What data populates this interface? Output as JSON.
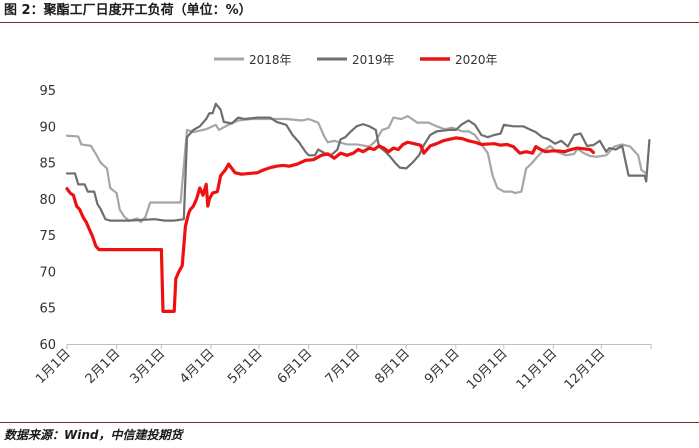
{
  "figure": {
    "title": "图 2：聚酯工厂日度开工负荷（单位：%）",
    "source": "数据来源：Wind，中信建投期货"
  },
  "chart_data": {
    "type": "line",
    "title": "",
    "xlabel": "",
    "ylabel": "",
    "ylim": [
      60,
      95
    ],
    "yticks": [
      60,
      65,
      70,
      75,
      80,
      85,
      90,
      95
    ],
    "x_domain": [
      1,
      366
    ],
    "x_unit": "day of year",
    "x_ticks": [
      {
        "label": "1月1日",
        "day": 1
      },
      {
        "label": "2月1日",
        "day": 32
      },
      {
        "label": "3月1日",
        "day": 60
      },
      {
        "label": "4月1日",
        "day": 91
      },
      {
        "label": "5月1日",
        "day": 121
      },
      {
        "label": "6月1日",
        "day": 152
      },
      {
        "label": "7月1日",
        "day": 182
      },
      {
        "label": "8月1日",
        "day": 213
      },
      {
        "label": "9月1日",
        "day": 244
      },
      {
        "label": "10月1日",
        "day": 274
      },
      {
        "label": "11月1日",
        "day": 305
      },
      {
        "label": "12月1日",
        "day": 335
      }
    ],
    "grid": false,
    "legend": "top-center",
    "series": [
      {
        "name": "2018年",
        "color": "#a6a6a6",
        "points": [
          [
            1,
            88.7
          ],
          [
            8,
            88.6
          ],
          [
            10,
            87.5
          ],
          [
            16,
            87.3
          ],
          [
            19,
            86.2
          ],
          [
            22,
            85.0
          ],
          [
            26,
            84.2
          ],
          [
            28,
            81.5
          ],
          [
            32,
            80.8
          ],
          [
            34,
            78.5
          ],
          [
            37,
            77.5
          ],
          [
            40,
            77.0
          ],
          [
            45,
            77.3
          ],
          [
            47,
            76.8
          ],
          [
            50,
            77.5
          ],
          [
            53,
            79.5
          ],
          [
            58,
            79.5
          ],
          [
            62,
            79.5
          ],
          [
            72,
            79.5
          ],
          [
            76,
            89.5
          ],
          [
            80,
            89.2
          ],
          [
            88,
            89.6
          ],
          [
            94,
            90.2
          ],
          [
            96,
            89.5
          ],
          [
            101,
            90.1
          ],
          [
            108,
            90.8
          ],
          [
            116,
            91.0
          ],
          [
            128,
            91.0
          ],
          [
            138,
            91.0
          ],
          [
            148,
            90.8
          ],
          [
            152,
            91.0
          ],
          [
            158,
            90.5
          ],
          [
            162,
            88.5
          ],
          [
            164,
            87.8
          ],
          [
            168,
            88.0
          ],
          [
            176,
            87.5
          ],
          [
            182,
            87.5
          ],
          [
            190,
            87.2
          ],
          [
            194,
            88.0
          ],
          [
            198,
            89.5
          ],
          [
            202,
            89.8
          ],
          [
            205,
            91.2
          ],
          [
            210,
            91.0
          ],
          [
            214,
            91.4
          ],
          [
            220,
            90.5
          ],
          [
            227,
            90.5
          ],
          [
            232,
            90.0
          ],
          [
            237,
            89.6
          ],
          [
            242,
            89.8
          ],
          [
            248,
            89.3
          ],
          [
            252,
            89.3
          ],
          [
            256,
            88.8
          ],
          [
            260,
            87.5
          ],
          [
            264,
            86.3
          ],
          [
            267,
            83.2
          ],
          [
            270,
            81.5
          ],
          [
            274,
            81.0
          ],
          [
            279,
            81.0
          ],
          [
            281,
            80.8
          ],
          [
            285,
            81.0
          ],
          [
            288,
            84.2
          ],
          [
            291,
            84.8
          ],
          [
            295,
            85.8
          ],
          [
            298,
            86.5
          ],
          [
            303,
            87.3
          ],
          [
            307,
            86.5
          ],
          [
            313,
            86.0
          ],
          [
            318,
            86.2
          ],
          [
            320,
            86.9
          ],
          [
            324,
            86.3
          ],
          [
            328,
            85.9
          ],
          [
            332,
            85.8
          ],
          [
            338,
            86.0
          ],
          [
            343,
            87.2
          ],
          [
            348,
            87.5
          ],
          [
            353,
            87.2
          ],
          [
            358,
            86.0
          ],
          [
            360,
            84.0
          ],
          [
            363,
            83.5
          ]
        ]
      },
      {
        "name": "2019年",
        "color": "#6e6e6e",
        "points": [
          [
            1,
            83.5
          ],
          [
            6,
            83.5
          ],
          [
            8,
            82.0
          ],
          [
            12,
            82.0
          ],
          [
            14,
            81.0
          ],
          [
            18,
            81.0
          ],
          [
            20,
            79.3
          ],
          [
            22,
            78.6
          ],
          [
            25,
            77.2
          ],
          [
            28,
            77.0
          ],
          [
            34,
            77.0
          ],
          [
            40,
            77.0
          ],
          [
            48,
            77.1
          ],
          [
            56,
            77.2
          ],
          [
            62,
            77.0
          ],
          [
            68,
            77.0
          ],
          [
            74,
            77.2
          ],
          [
            76,
            88.5
          ],
          [
            80,
            89.5
          ],
          [
            84,
            90.0
          ],
          [
            88,
            91.0
          ],
          [
            90,
            91.8
          ],
          [
            92,
            91.8
          ],
          [
            94,
            93.1
          ],
          [
            97,
            92.3
          ],
          [
            99,
            90.6
          ],
          [
            104,
            90.4
          ],
          [
            108,
            91.2
          ],
          [
            112,
            91.0
          ],
          [
            120,
            91.2
          ],
          [
            128,
            91.2
          ],
          [
            132,
            90.6
          ],
          [
            138,
            90.2
          ],
          [
            142,
            88.8
          ],
          [
            146,
            87.8
          ],
          [
            150,
            86.5
          ],
          [
            152,
            86.0
          ],
          [
            156,
            86.0
          ],
          [
            158,
            86.8
          ],
          [
            162,
            86.3
          ],
          [
            166,
            86.0
          ],
          [
            170,
            86.8
          ],
          [
            172,
            88.2
          ],
          [
            175,
            88.5
          ],
          [
            178,
            89.2
          ],
          [
            182,
            90.0
          ],
          [
            186,
            90.3
          ],
          [
            190,
            90.0
          ],
          [
            194,
            89.5
          ],
          [
            196,
            87.2
          ],
          [
            200,
            86.5
          ],
          [
            203,
            85.8
          ],
          [
            206,
            85.0
          ],
          [
            209,
            84.3
          ],
          [
            213,
            84.2
          ],
          [
            217,
            85.0
          ],
          [
            221,
            86.0
          ],
          [
            224,
            87.4
          ],
          [
            228,
            88.8
          ],
          [
            232,
            89.3
          ],
          [
            236,
            89.4
          ],
          [
            240,
            89.5
          ],
          [
            244,
            89.5
          ],
          [
            248,
            90.3
          ],
          [
            252,
            90.8
          ],
          [
            256,
            90.2
          ],
          [
            260,
            88.8
          ],
          [
            264,
            88.5
          ],
          [
            268,
            88.8
          ],
          [
            272,
            89.0
          ],
          [
            274,
            90.2
          ],
          [
            280,
            90.0
          ],
          [
            286,
            90.0
          ],
          [
            290,
            89.6
          ],
          [
            294,
            89.2
          ],
          [
            298,
            88.5
          ],
          [
            302,
            88.2
          ],
          [
            306,
            87.6
          ],
          [
            310,
            88.0
          ],
          [
            314,
            87.2
          ],
          [
            318,
            88.8
          ],
          [
            322,
            89.0
          ],
          [
            326,
            87.3
          ],
          [
            330,
            87.4
          ],
          [
            334,
            88.0
          ],
          [
            338,
            86.5
          ],
          [
            340,
            87.0
          ],
          [
            344,
            86.8
          ],
          [
            348,
            87.3
          ],
          [
            352,
            83.2
          ],
          [
            358,
            83.2
          ],
          [
            362,
            83.2
          ],
          [
            363,
            82.4
          ],
          [
            365,
            88.1
          ]
        ]
      },
      {
        "name": "2020年",
        "color": "#ee1111",
        "points": [
          [
            1,
            81.4
          ],
          [
            3,
            80.8
          ],
          [
            5,
            80.5
          ],
          [
            7,
            79.0
          ],
          [
            9,
            78.5
          ],
          [
            11,
            77.5
          ],
          [
            13,
            76.8
          ],
          [
            15,
            75.8
          ],
          [
            17,
            74.8
          ],
          [
            19,
            73.5
          ],
          [
            21,
            73.0
          ],
          [
            23,
            73.0
          ],
          [
            30,
            73.0
          ],
          [
            40,
            73.0
          ],
          [
            50,
            73.0
          ],
          [
            60,
            73.0
          ],
          [
            61,
            64.5
          ],
          [
            68,
            64.5
          ],
          [
            69,
            69.0
          ],
          [
            71,
            70.0
          ],
          [
            73,
            70.8
          ],
          [
            75,
            76.2
          ],
          [
            77,
            78.0
          ],
          [
            78,
            78.5
          ],
          [
            80,
            79.0
          ],
          [
            82,
            80.0
          ],
          [
            84,
            81.5
          ],
          [
            86,
            80.5
          ],
          [
            88,
            82.0
          ],
          [
            89,
            79.0
          ],
          [
            90,
            80.0
          ],
          [
            92,
            80.8
          ],
          [
            95,
            81.0
          ],
          [
            97,
            83.2
          ],
          [
            100,
            84.0
          ],
          [
            102,
            84.8
          ],
          [
            104,
            84.2
          ],
          [
            106,
            83.6
          ],
          [
            110,
            83.4
          ],
          [
            115,
            83.5
          ],
          [
            120,
            83.6
          ],
          [
            124,
            84.0
          ],
          [
            128,
            84.3
          ],
          [
            132,
            84.5
          ],
          [
            136,
            84.6
          ],
          [
            140,
            84.5
          ],
          [
            145,
            84.8
          ],
          [
            150,
            85.3
          ],
          [
            155,
            85.4
          ],
          [
            160,
            86.0
          ],
          [
            164,
            86.2
          ],
          [
            168,
            85.6
          ],
          [
            172,
            86.3
          ],
          [
            176,
            86.0
          ],
          [
            180,
            86.3
          ],
          [
            183,
            86.8
          ],
          [
            186,
            86.5
          ],
          [
            190,
            87.0
          ],
          [
            193,
            86.8
          ],
          [
            196,
            87.3
          ],
          [
            199,
            87.0
          ],
          [
            202,
            86.5
          ],
          [
            205,
            87.0
          ],
          [
            208,
            86.8
          ],
          [
            211,
            87.5
          ],
          [
            214,
            87.8
          ],
          [
            218,
            87.6
          ],
          [
            222,
            87.4
          ],
          [
            224,
            86.3
          ],
          [
            228,
            87.3
          ],
          [
            232,
            87.6
          ],
          [
            236,
            88.0
          ],
          [
            240,
            88.2
          ],
          [
            244,
            88.4
          ],
          [
            248,
            88.3
          ],
          [
            252,
            88.0
          ],
          [
            256,
            87.8
          ],
          [
            260,
            87.5
          ],
          [
            268,
            87.6
          ],
          [
            272,
            87.4
          ],
          [
            276,
            87.5
          ],
          [
            280,
            87.2
          ],
          [
            284,
            86.3
          ],
          [
            286,
            86.4
          ],
          [
            288,
            86.5
          ],
          [
            292,
            86.3
          ],
          [
            294,
            87.2
          ],
          [
            297,
            86.8
          ],
          [
            300,
            86.5
          ],
          [
            304,
            86.6
          ],
          [
            308,
            86.6
          ],
          [
            312,
            86.5
          ],
          [
            316,
            86.8
          ],
          [
            320,
            87.0
          ],
          [
            324,
            86.9
          ],
          [
            328,
            86.8
          ],
          [
            330,
            86.4
          ]
        ]
      }
    ]
  }
}
